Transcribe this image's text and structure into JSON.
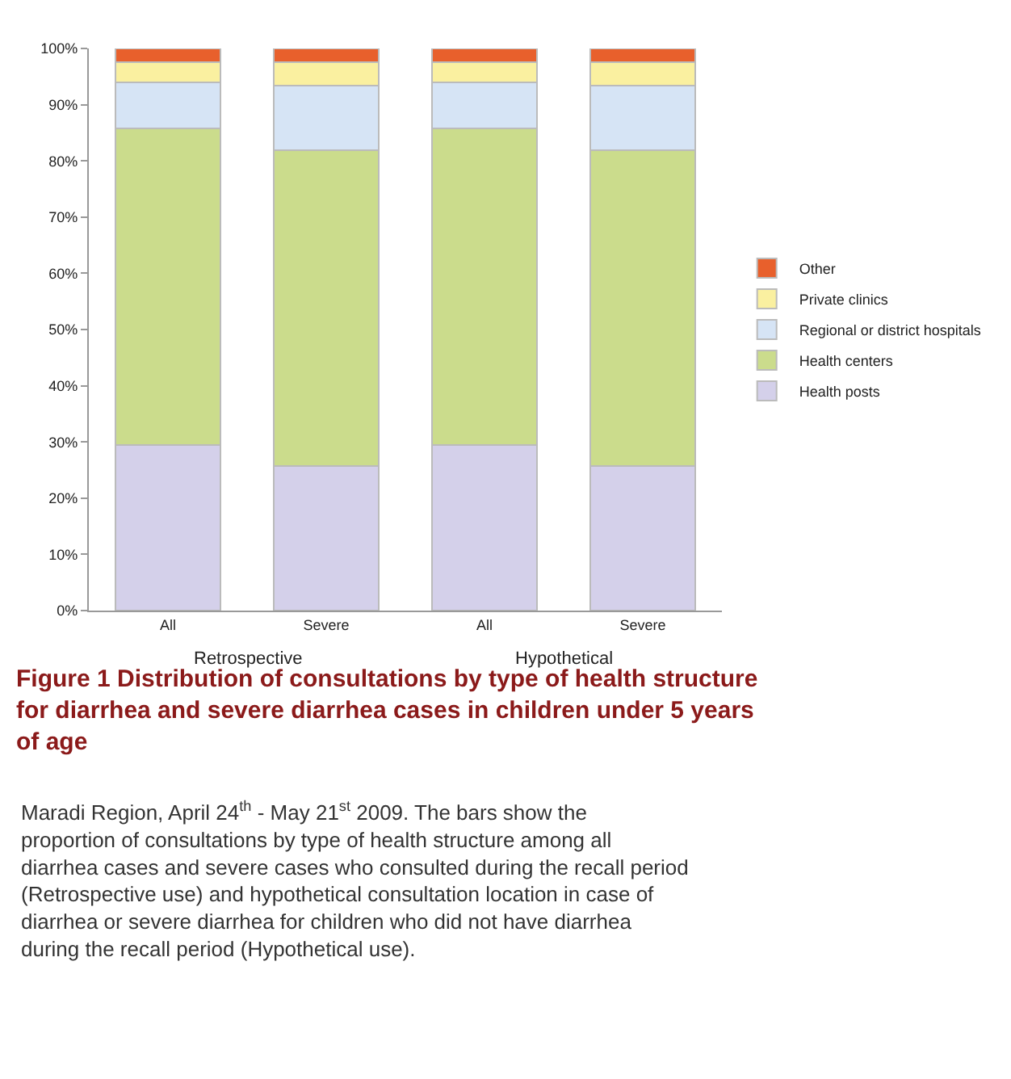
{
  "chart_data": {
    "type": "bar",
    "stacked": true,
    "title": "Figure 1 Distribution of consultations by type of health structure for diarrhea and severe diarrhea cases in children under 5 years of age",
    "categories": [
      "All",
      "Severe",
      "All",
      "Severe"
    ],
    "series": [
      {
        "name": "Health posts",
        "color": "#d4d0ea",
        "values": [
          29.5,
          25.7,
          29.5,
          25.7
        ]
      },
      {
        "name": "Health centers",
        "color": "#cbdc8c",
        "values": [
          56.3,
          56.2,
          56.3,
          56.2
        ]
      },
      {
        "name": "Regional or district hospitals",
        "color": "#d6e4f5",
        "values": [
          8.2,
          11.5,
          8.2,
          11.5
        ]
      },
      {
        "name": "Private clinics",
        "color": "#faf0a0",
        "values": [
          3.6,
          4.1,
          3.6,
          4.1
        ]
      },
      {
        "name": "Other",
        "color": "#e8602c",
        "values": [
          2.4,
          2.5,
          2.4,
          2.5
        ]
      }
    ],
    "ylim": [
      0,
      100
    ],
    "yticks": [
      {
        "value": 0,
        "label": "0%"
      },
      {
        "value": 10,
        "label": "10%"
      },
      {
        "value": 20,
        "label": "20%"
      },
      {
        "value": 30,
        "label": "30%"
      },
      {
        "value": 40,
        "label": "40%"
      },
      {
        "value": 50,
        "label": "50%"
      },
      {
        "value": 60,
        "label": "60%"
      },
      {
        "value": 70,
        "label": "70%"
      },
      {
        "value": 80,
        "label": "80%"
      },
      {
        "value": 90,
        "label": "90%"
      },
      {
        "value": 100,
        "label": "100%"
      }
    ],
    "legend": "right",
    "annotations": [
      "Retrospective",
      "Hypothetical",
      "Maradi Region, April 24$^{th}$ - May 21$^{st}$ 2009. The bars show the proportion of consultations by type of health structure among all diarrhea cases and severe cases who consulted during the recall period (Retrospective use) and hypothetical consultation location in case of diarrhea or severe diarrhea for children who did not have diarrhea during the recall period (Hypothetical use)."
    ]
  }
}
